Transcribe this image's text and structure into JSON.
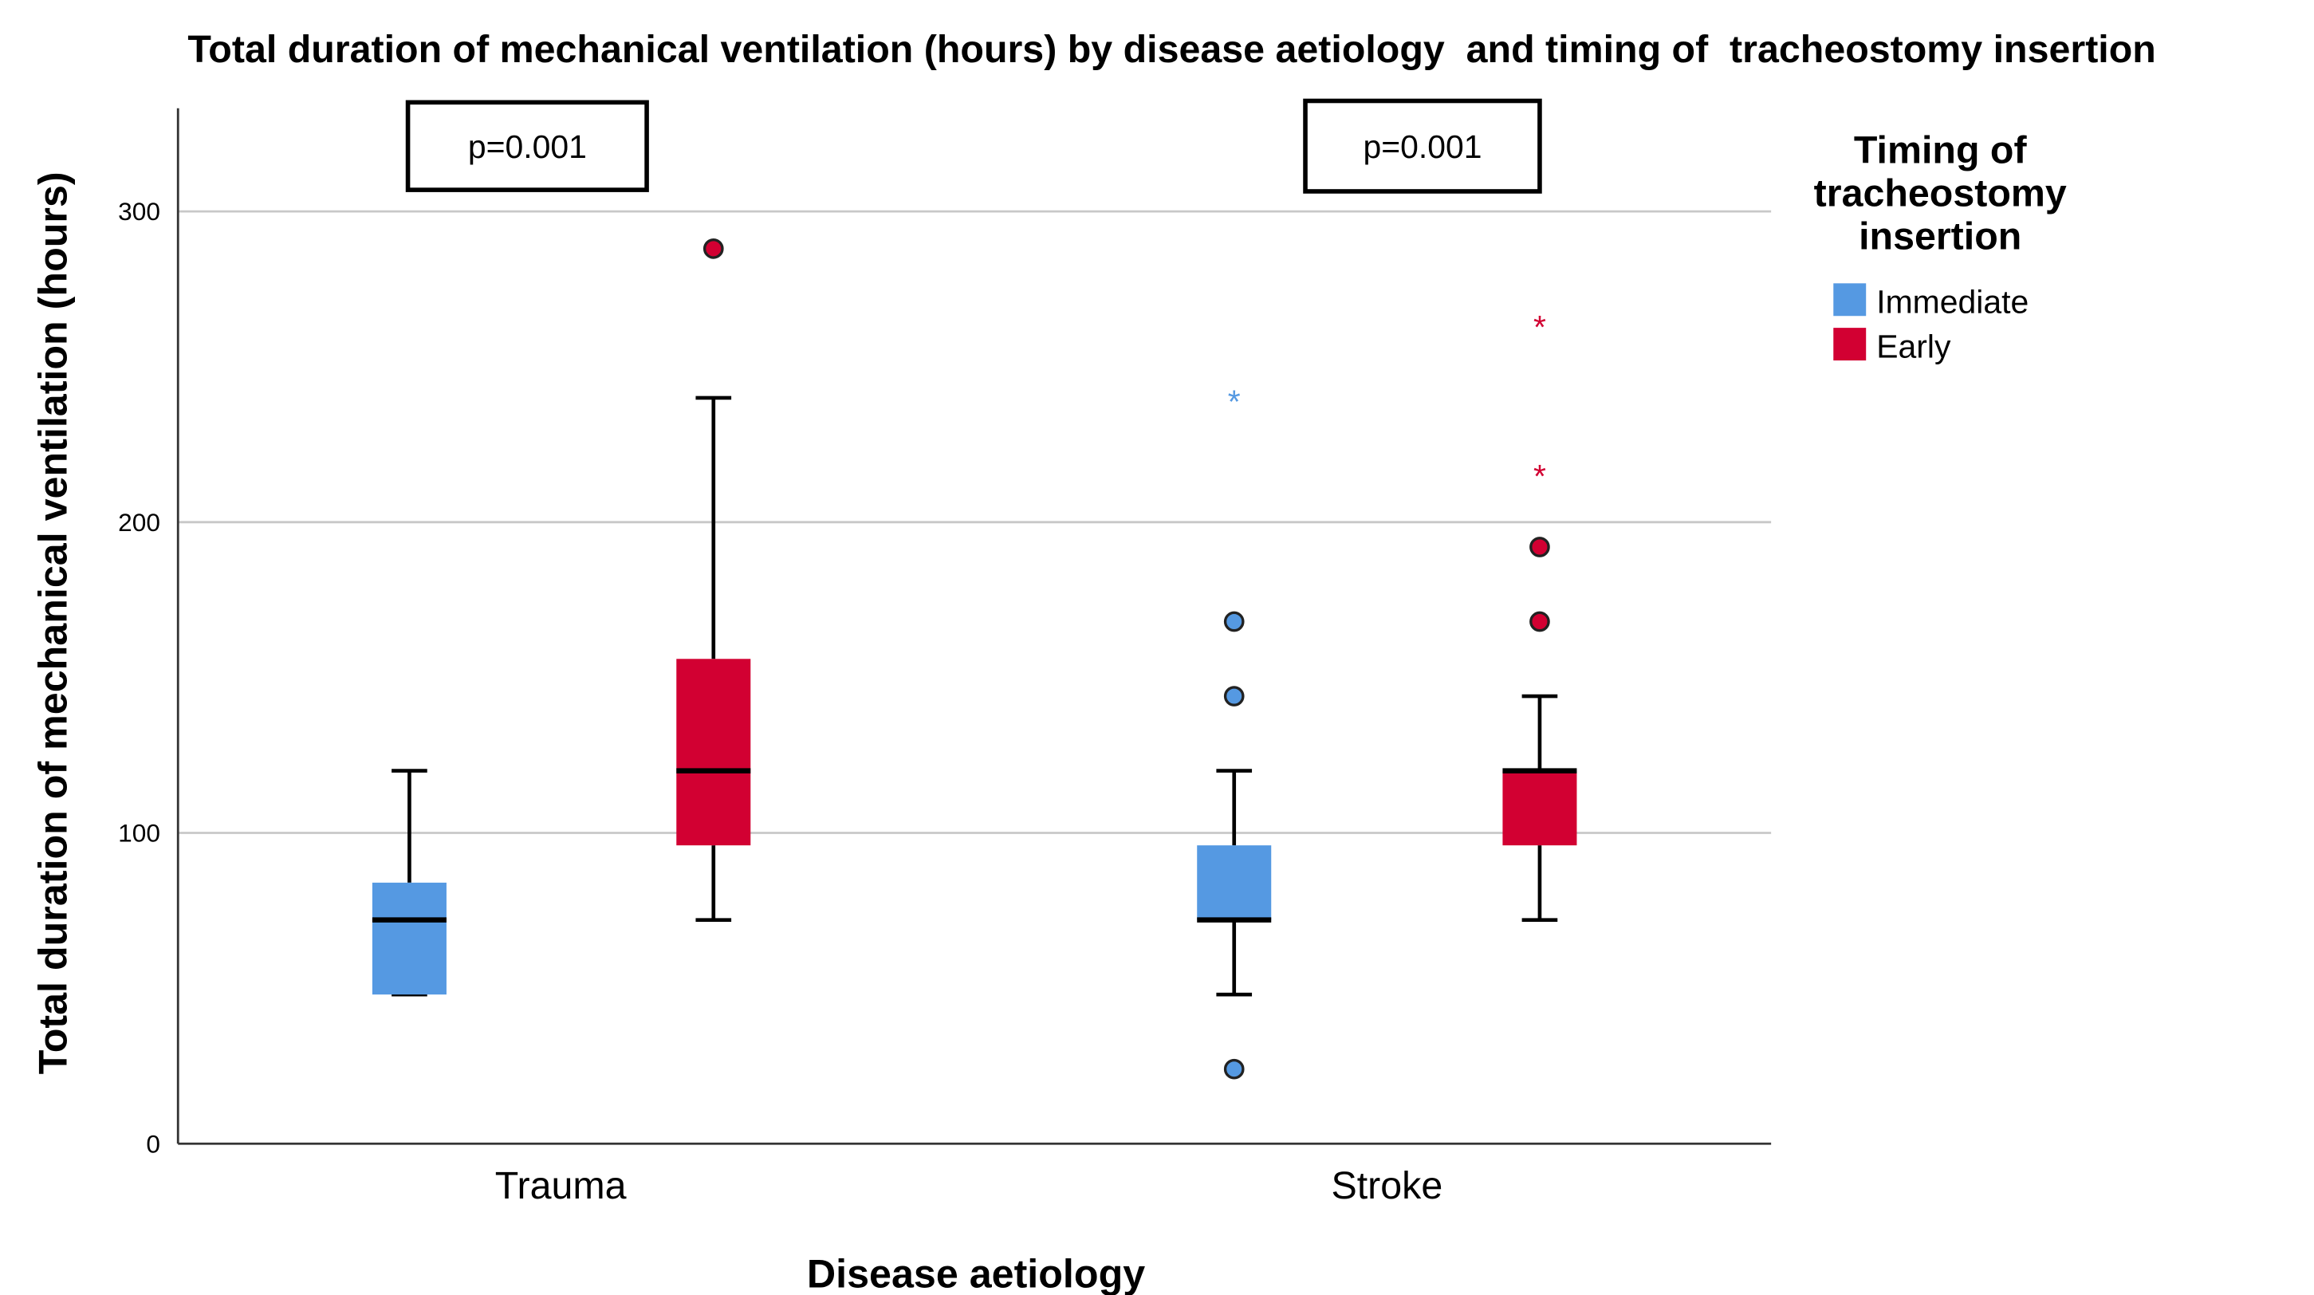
{
  "chart_data": {
    "type": "boxplot",
    "title": "Total duration of mechanical ventilation (hours) by disease aetiology  and timing of  tracheostomy insertion",
    "xlabel": "Disease aetiology",
    "ylabel": "Total duration of mechanical ventilation (hours)",
    "ylim": [
      0,
      330
    ],
    "yticks": [
      0,
      100,
      200,
      300
    ],
    "grid": true,
    "categories": [
      "Trauma",
      "Stroke"
    ],
    "legend": {
      "title": "Timing of tracheostomy insertion",
      "title_lines": [
        "Timing of",
        "tracheostomy",
        "insertion"
      ],
      "placement": "right",
      "entries": [
        {
          "name": "Immediate",
          "color": "#5599e2"
        },
        {
          "name": "Early",
          "color": "#d20032"
        }
      ]
    },
    "annotations": [
      {
        "category": "Trauma",
        "text": "p=0.001"
      },
      {
        "category": "Stroke",
        "text": "p=0.001"
      }
    ],
    "series": [
      {
        "name": "Immediate",
        "color": "#5599e2",
        "boxes": [
          {
            "category": "Trauma",
            "whisker_low": 48,
            "q1": 48,
            "median": 72,
            "q3": 84,
            "whisker_high": 120,
            "outliers": [],
            "extremes": []
          },
          {
            "category": "Stroke",
            "whisker_low": 48,
            "q1": 72,
            "median": 72,
            "q3": 96,
            "whisker_high": 120,
            "outliers": [
              24,
              144,
              168
            ],
            "extremes": [
              240
            ]
          }
        ]
      },
      {
        "name": "Early",
        "color": "#d20032",
        "boxes": [
          {
            "category": "Trauma",
            "whisker_low": 72,
            "q1": 96,
            "median": 120,
            "q3": 156,
            "whisker_high": 240,
            "outliers": [
              288
            ],
            "extremes": []
          },
          {
            "category": "Stroke",
            "whisker_low": 72,
            "q1": 96,
            "median": 120,
            "q3": 120,
            "whisker_high": 144,
            "outliers": [
              168,
              192
            ],
            "extremes": [
              216,
              264
            ]
          }
        ]
      }
    ]
  }
}
